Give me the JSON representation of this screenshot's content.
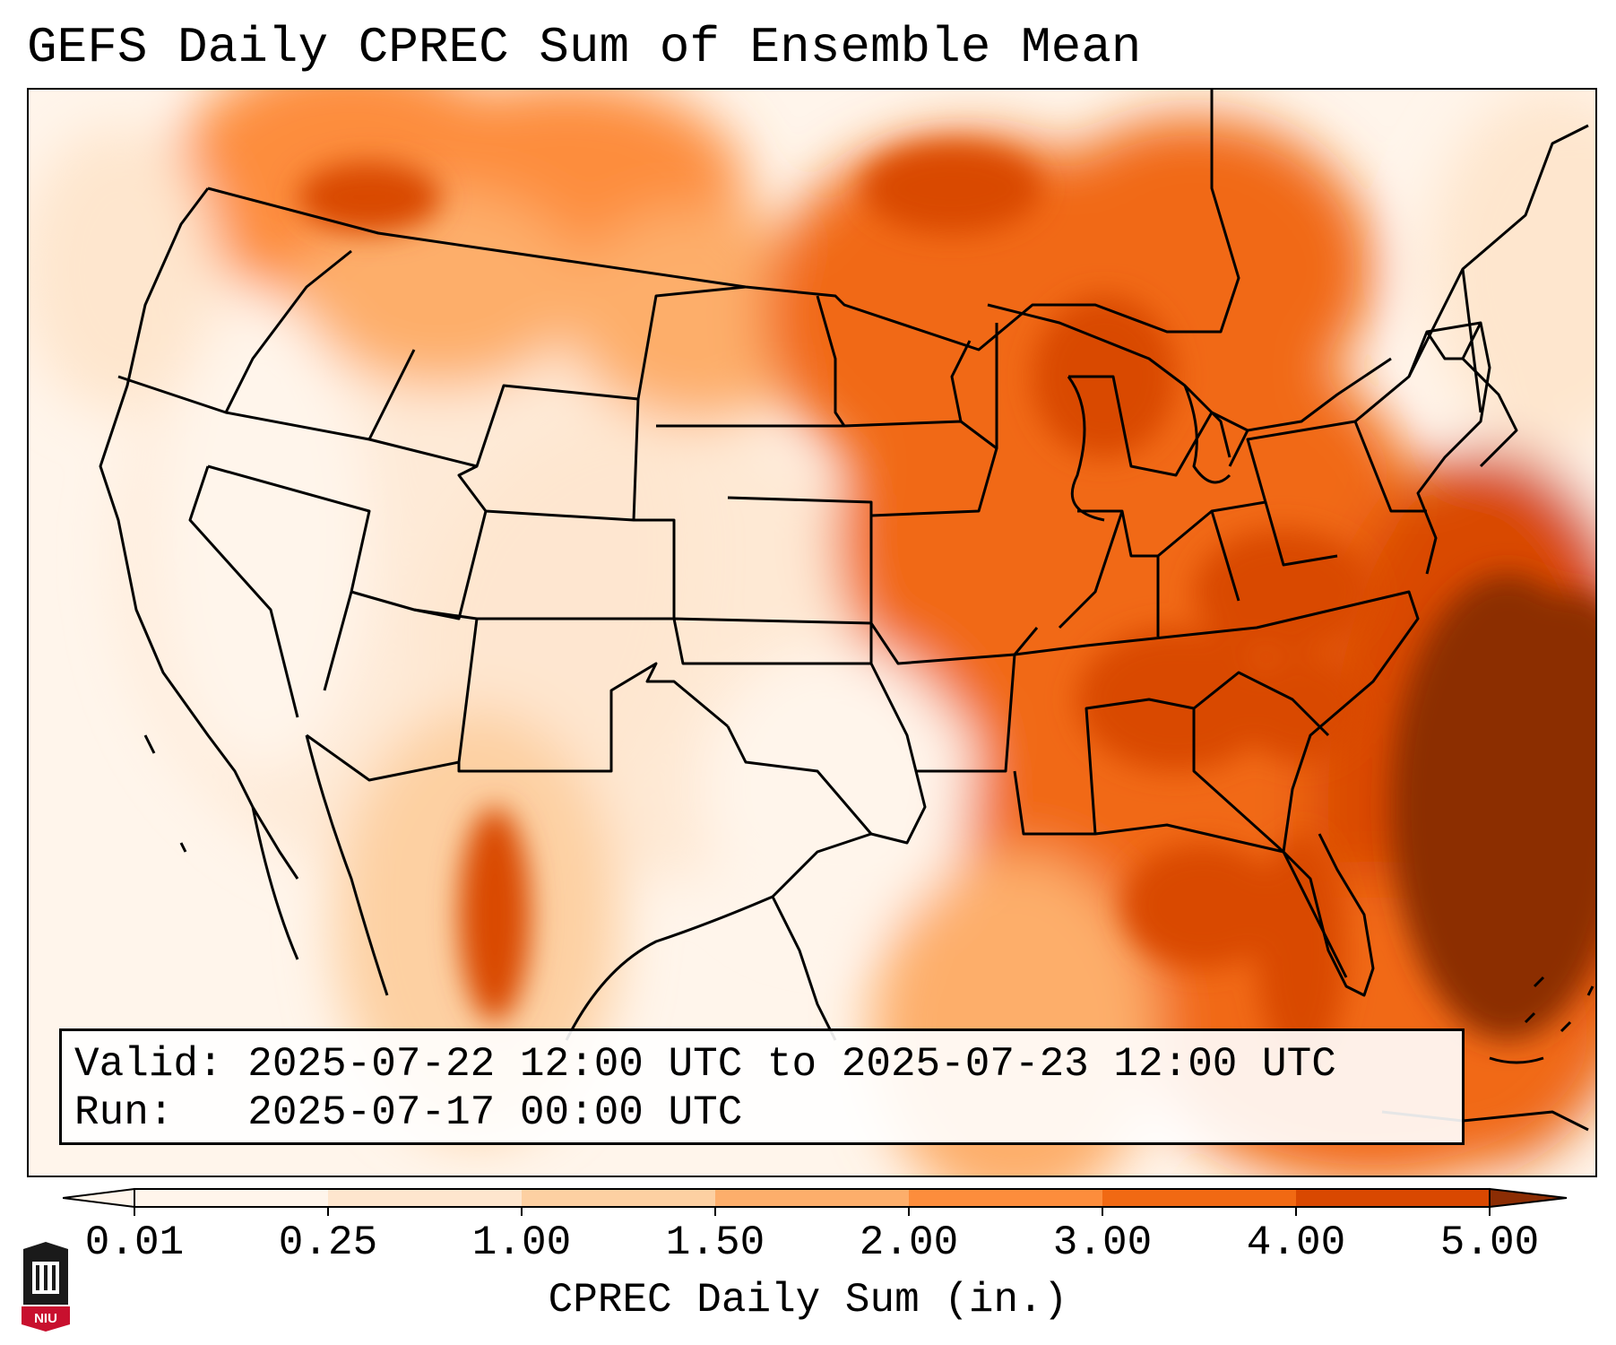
{
  "title": "GEFS Daily CPREC Sum of Ensemble Mean",
  "info": {
    "valid_line": "Valid: 2025-07-22 12:00 UTC to 2025-07-23 12:00 UTC",
    "run_line": "Run:   2025-07-17 00:00 UTC"
  },
  "colorbar": {
    "label": "CPREC Daily Sum (in.)",
    "ticks": [
      "0.01",
      "0.25",
      "1.00",
      "1.50",
      "2.00",
      "3.00",
      "4.00",
      "5.00"
    ],
    "colors": [
      "#fff5eb",
      "#fee6ce",
      "#fdd0a2",
      "#fdae6b",
      "#fd8d3c",
      "#f16913",
      "#d94801",
      "#8c2d04"
    ],
    "extend": "both"
  },
  "logo": {
    "text": "NIU",
    "color": "#c8102e"
  }
}
